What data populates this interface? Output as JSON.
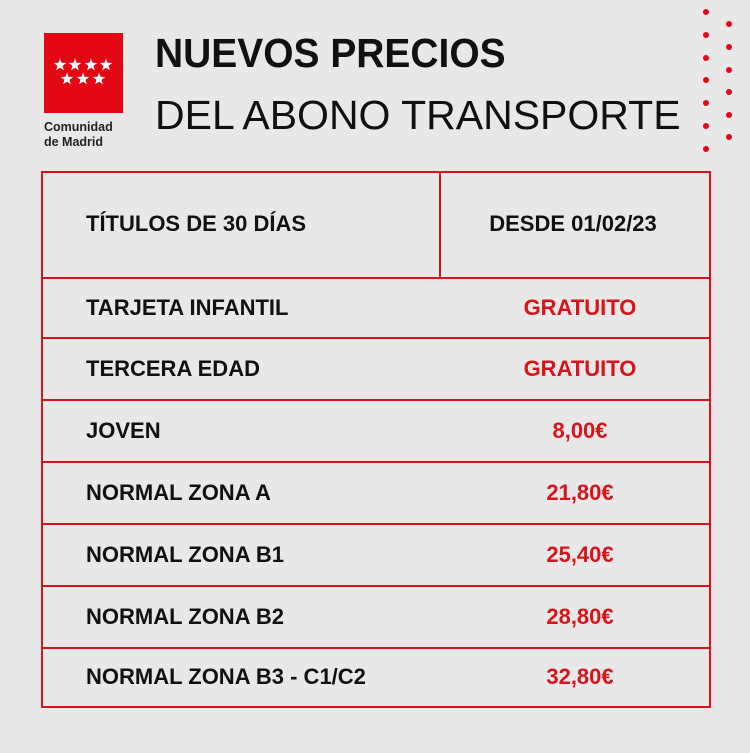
{
  "logo": {
    "line1": "Comunidad",
    "line2": "de Madrid"
  },
  "header": {
    "title": "NUEVOS PRECIOS",
    "subtitle": "DEL ABONO TRANSPORTE"
  },
  "table": {
    "columns": [
      "TÍTULOS DE 30 DÍAS",
      "DESDE 01/02/23"
    ],
    "rows": [
      [
        "TARJETA INFANTIL",
        "GRATUITO"
      ],
      [
        "TERCERA EDAD",
        "GRATUITO"
      ],
      [
        "JOVEN",
        "8,00€"
      ],
      [
        "NORMAL ZONA A",
        "21,80€"
      ],
      [
        "NORMAL ZONA B1",
        "25,40€"
      ],
      [
        "NORMAL ZONA B2",
        "28,80€"
      ],
      [
        "NORMAL ZONA B3 - C1/C2",
        "32,80€"
      ]
    ]
  }
}
